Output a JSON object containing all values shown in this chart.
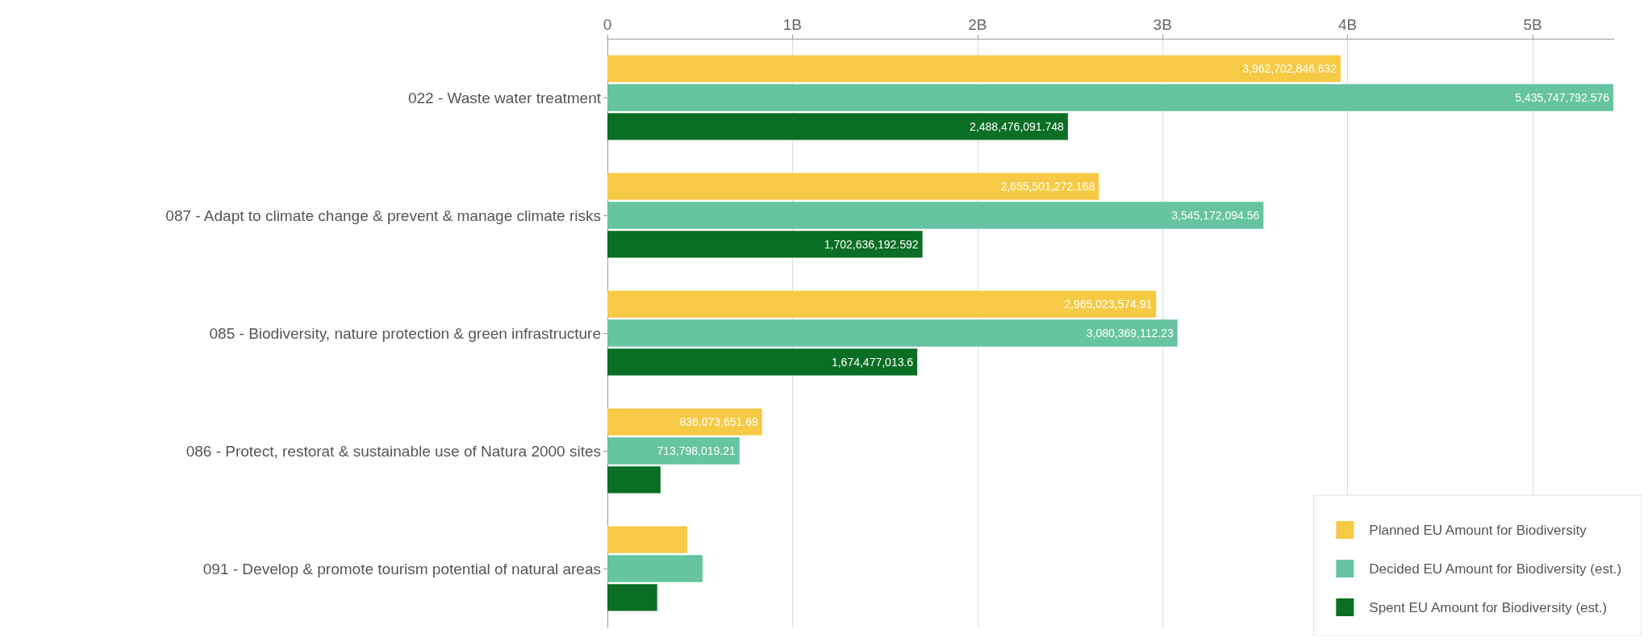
{
  "chart_data": {
    "type": "bar",
    "orientation": "horizontal",
    "categories": [
      "022 - Waste water treatment",
      "087 - Adapt to climate change & prevent & manage climate risks",
      "085 - Biodiversity, nature protection & green infrastructure",
      "086 - Protect, restorat & sustainable use of Natura 2000 sites",
      "091 - Develop & promote tourism potential of natural areas"
    ],
    "series": [
      {
        "name": "Planned EU Amount for Biodiversity",
        "color": "#f7ca45",
        "values": [
          3962702846.632,
          2655501272.168,
          2965023574.91,
          836073651.69,
          432000000
        ],
        "value_labels": [
          "3,962,702,846.632",
          "2,655,501,272.168",
          "2,965,023,574.91",
          "836,073,651.69",
          null
        ]
      },
      {
        "name": "Decided EU Amount for Biodiversity (est.)",
        "color": "#66c4a0",
        "values": [
          5435747792.576,
          3545172094.56,
          3080369112.23,
          713798019.21,
          514000000
        ],
        "value_labels": [
          "5,435,747,792.576",
          "3,545,172,094.56",
          "3,080,369,112.23",
          "713,798,019.21",
          null
        ]
      },
      {
        "name": "Spent EU Amount for Biodiversity (est.)",
        "color": "#0a6e24",
        "values": [
          2488476091.748,
          1702636192.592,
          1674477013.6,
          287000000,
          269000000
        ],
        "value_labels": [
          "2,488,476,091.748",
          "1,702,636,192.592",
          "1,674,477,013.6",
          null,
          null
        ]
      }
    ],
    "xlim": [
      0,
      5440000000
    ],
    "xticks": [
      0,
      {
        "value": 1000000000,
        "label": "1B"
      },
      {
        "value": 2000000000,
        "label": "2B"
      },
      {
        "value": 3000000000,
        "label": "3B"
      },
      {
        "value": 4000000000,
        "label": "4B"
      },
      {
        "value": 5000000000,
        "label": "5B"
      }
    ],
    "grid": "x",
    "legend": "bottom right"
  }
}
